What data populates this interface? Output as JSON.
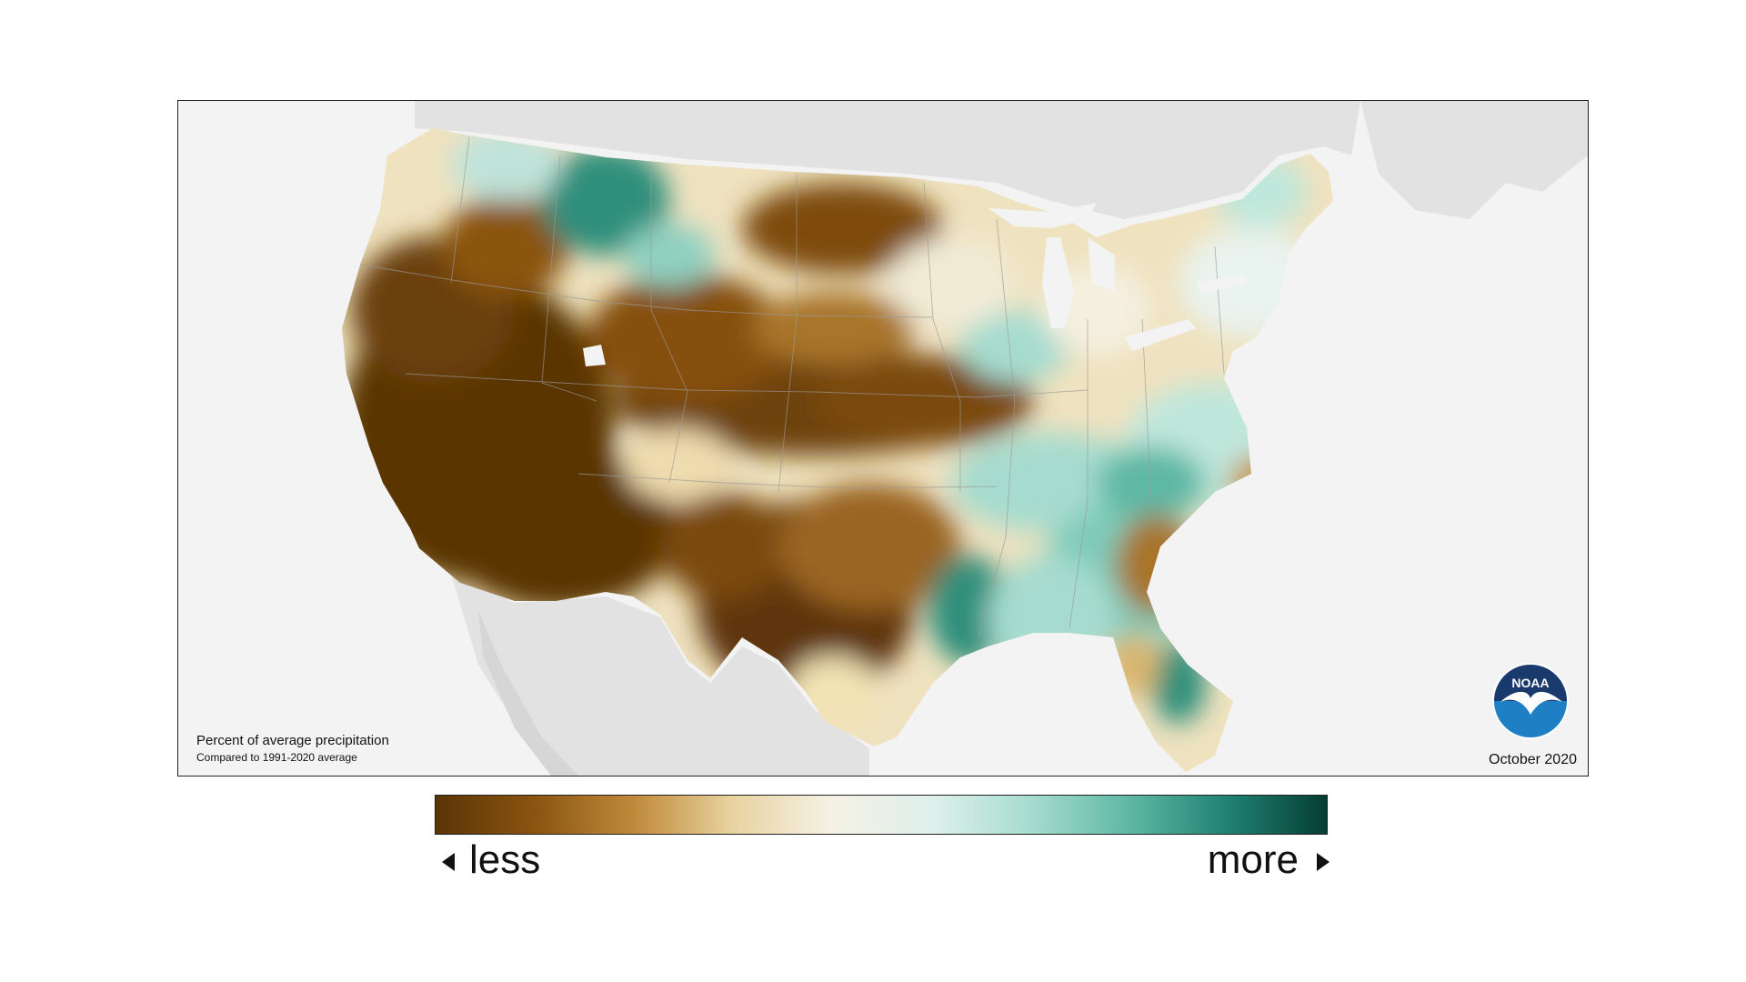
{
  "map": {
    "note_title": "Percent of average precipitation",
    "note_subtitle": "Compared to 1991-2020 average",
    "date": "October 2020",
    "logo_text": "NOAA"
  },
  "legend": {
    "less_label": "less",
    "more_label": "more",
    "colors": [
      "#5a3406",
      "#8a5410",
      "#bf8a3a",
      "#e8d3a0",
      "#f5f1e4",
      "#dff0ec",
      "#a6dccf",
      "#5fb8a4",
      "#1f8272",
      "#053d33"
    ]
  },
  "colors": {
    "land_background": "#e2e2e2",
    "ocean_background": "#f3f3f3",
    "very_dry": "#5a3406",
    "dry": "#8a5410",
    "moderate_dry": "#bf8a3a",
    "slight_dry": "#e8d3a0",
    "near_normal": "#f5f1e4",
    "slight_wet": "#dff0ec",
    "wet": "#7fcbb9",
    "very_wet": "#1f8272"
  }
}
